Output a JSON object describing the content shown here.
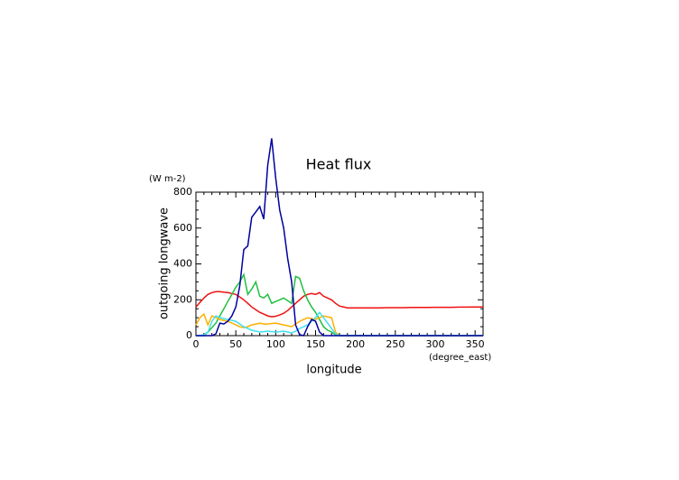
{
  "chart_data": {
    "type": "line",
    "title": "Heat flux",
    "y_unit": "(W m-2)",
    "ylabel": "outgoing longwave",
    "xlabel": "longitude",
    "x_unit": "(degree_east)",
    "x": [
      0,
      5,
      10,
      15,
      20,
      25,
      30,
      35,
      40,
      45,
      50,
      55,
      60,
      65,
      70,
      75,
      80,
      85,
      90,
      95,
      100,
      105,
      110,
      115,
      120,
      125,
      130,
      135,
      140,
      145,
      150,
      155,
      160,
      165,
      170,
      175,
      180,
      190,
      200,
      210,
      220,
      230,
      240,
      250,
      260,
      270,
      280,
      290,
      300,
      310,
      320,
      330,
      340,
      350,
      360
    ],
    "xlim": [
      0,
      360
    ],
    "xticks": [
      0,
      50,
      100,
      150,
      200,
      250,
      300,
      350
    ],
    "ylim": [
      0,
      800
    ],
    "yticks": [
      0,
      200,
      400,
      600,
      800
    ],
    "series": [
      {
        "color": "#f01010",
        "values": [
          160,
          185,
          210,
          230,
          240,
          245,
          245,
          242,
          240,
          235,
          230,
          215,
          200,
          180,
          160,
          145,
          130,
          120,
          110,
          105,
          108,
          115,
          125,
          140,
          160,
          180,
          200,
          220,
          230,
          235,
          230,
          240,
          220,
          210,
          200,
          180,
          165,
          155,
          155,
          155,
          155,
          155,
          156,
          156,
          156,
          157,
          157,
          157,
          158,
          158,
          158,
          159,
          159,
          160,
          160
        ]
      },
      {
        "color": "#20c040",
        "values": [
          0,
          0,
          0,
          20,
          45,
          70,
          110,
          150,
          190,
          230,
          270,
          300,
          340,
          230,
          260,
          300,
          220,
          210,
          230,
          180,
          190,
          200,
          210,
          195,
          180,
          330,
          320,
          250,
          200,
          160,
          130,
          90,
          50,
          30,
          20,
          5,
          0,
          0,
          0,
          0,
          0,
          0,
          0,
          0,
          0,
          0,
          0,
          0,
          0,
          0,
          0,
          0,
          0,
          0,
          0
        ]
      },
      {
        "color": "#ffb000",
        "values": [
          60,
          100,
          120,
          60,
          110,
          100,
          90,
          85,
          80,
          70,
          60,
          50,
          45,
          50,
          60,
          65,
          70,
          65,
          65,
          68,
          70,
          65,
          60,
          55,
          50,
          65,
          80,
          90,
          100,
          95,
          90,
          100,
          110,
          105,
          100,
          20,
          0,
          0,
          0,
          0,
          0,
          0,
          0,
          0,
          0,
          0,
          0,
          0,
          0,
          0,
          0,
          0,
          0,
          0,
          0
        ]
      },
      {
        "color": "#40e0f0",
        "values": [
          0,
          0,
          5,
          20,
          80,
          110,
          100,
          95,
          90,
          85,
          80,
          65,
          50,
          40,
          30,
          25,
          20,
          22,
          25,
          22,
          20,
          22,
          25,
          20,
          15,
          25,
          40,
          50,
          60,
          80,
          100,
          130,
          100,
          70,
          40,
          10,
          0,
          0,
          0,
          0,
          0,
          0,
          0,
          0,
          0,
          0,
          0,
          0,
          0,
          0,
          0,
          0,
          0,
          0,
          0
        ]
      },
      {
        "color": "#0000a0",
        "values": [
          0,
          0,
          0,
          0,
          0,
          10,
          70,
          65,
          80,
          110,
          160,
          280,
          480,
          500,
          660,
          690,
          720,
          650,
          950,
          1100,
          880,
          700,
          600,
          430,
          300,
          60,
          5,
          0,
          50,
          90,
          80,
          20,
          0,
          0,
          0,
          0,
          0,
          0,
          0,
          0,
          0,
          0,
          0,
          0,
          0,
          0,
          0,
          0,
          0,
          0,
          0,
          0,
          0,
          0,
          0
        ]
      }
    ]
  }
}
